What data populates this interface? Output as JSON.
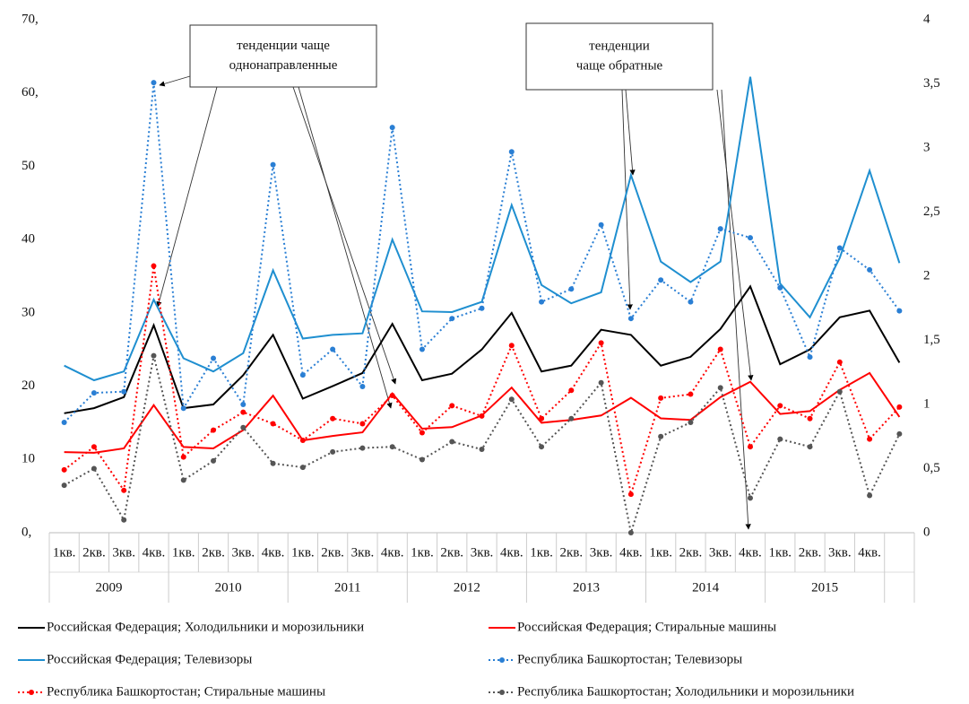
{
  "chart_data": {
    "type": "line",
    "categories": [
      "1кв.",
      "2кв.",
      "3кв.",
      "4кв.",
      "1кв.",
      "2кв.",
      "3кв.",
      "4кв.",
      "1кв.",
      "2кв.",
      "3кв.",
      "4кв.",
      "1кв.",
      "2кв.",
      "3кв.",
      "4кв.",
      "1кв.",
      "2кв.",
      "3кв.",
      "4кв.",
      "1кв.",
      "2кв.",
      "3кв.",
      "4кв.",
      "1кв.",
      "2кв.",
      "3кв.",
      "4кв.",
      null
    ],
    "groups": [
      "2009",
      "2010",
      "2011",
      "2012",
      "2013",
      "2014",
      "2015"
    ],
    "ylim": [
      0,
      70
    ],
    "yticks": [
      {
        "value": 0,
        "label": "0,"
      },
      10,
      20,
      30,
      40,
      50,
      {
        "value": 60,
        "label": "60,"
      },
      {
        "value": 70,
        "label": "70,"
      }
    ],
    "y2lim": [
      0,
      4
    ],
    "y2ticks": [
      0,
      {
        "value": 0.5,
        "label": "0,5"
      },
      1,
      {
        "value": 1.5,
        "label": "1,5"
      },
      2,
      {
        "value": 2.5,
        "label": "2,5"
      },
      3,
      {
        "value": 3.5,
        "label": "3,5"
      },
      4
    ],
    "series": [
      {
        "name": "Российская Федерация; Холодильники и морозильники",
        "color": "#000000",
        "style": "solid",
        "values": [
          16.3,
          17,
          18.5,
          28.3,
          17,
          17.5,
          21.5,
          27,
          18.3,
          20,
          21.8,
          28.5,
          20.8,
          21.7,
          25,
          30,
          22,
          22.8,
          27.7,
          27,
          22.8,
          24,
          27.8,
          33.6,
          23,
          25,
          29.4,
          30.3,
          23.2
        ]
      },
      {
        "name": "Российская Федерация; Стиральные машины",
        "color": "#ff0000",
        "style": "solid",
        "values": [
          11,
          10.9,
          11.5,
          17.4,
          11.7,
          11.5,
          14,
          18.7,
          12.6,
          13.2,
          13.7,
          19,
          14.2,
          14.4,
          16,
          19.8,
          15,
          15.4,
          16,
          18.4,
          15.6,
          15.4,
          18.5,
          20.6,
          16.2,
          16.6,
          19.5,
          21.8,
          15.8
        ]
      },
      {
        "name": "Российская Федерация; Телевизоры",
        "color": "#1f8fd0",
        "style": "solid",
        "values": [
          22.8,
          20.8,
          22,
          31.8,
          23.8,
          22,
          24.5,
          35.8,
          26.5,
          27,
          27.2,
          40,
          30.2,
          30.1,
          31.5,
          44.7,
          33.8,
          31.3,
          32.8,
          48.8,
          37,
          34.2,
          37,
          62.2,
          34,
          29.4,
          37.5,
          49.4,
          36.8
        ]
      },
      {
        "name": "Республика Башкортостан; Телевизоры",
        "color": "#2a7fd4",
        "style": "dotted",
        "axis": "y2",
        "values": [
          0.86,
          1.09,
          1.1,
          3.51,
          0.97,
          1.36,
          1.0,
          2.87,
          1.23,
          1.43,
          1.14,
          3.16,
          1.43,
          1.67,
          1.75,
          2.97,
          1.8,
          1.9,
          2.4,
          1.67,
          1.97,
          1.8,
          2.37,
          2.3,
          1.91,
          1.37,
          2.22,
          2.05,
          1.73
        ]
      },
      {
        "name": "Республика Башкортостан; Стиральные машины",
        "color": "#ff0000",
        "style": "dotted",
        "axis": "y2",
        "values": [
          0.49,
          0.67,
          0.33,
          2.08,
          0.59,
          0.8,
          0.94,
          0.85,
          0.72,
          0.89,
          0.85,
          1.07,
          0.78,
          0.99,
          0.91,
          1.46,
          0.89,
          1.11,
          1.48,
          0.3,
          1.05,
          1.08,
          1.43,
          0.67,
          0.99,
          0.89,
          1.33,
          0.73,
          0.98
        ]
      },
      {
        "name": "Республика Башкортостан; Холодильники и морозильники",
        "color": "#555555",
        "style": "dotted",
        "axis": "y2",
        "values": [
          0.37,
          0.5,
          0.1,
          1.38,
          0.41,
          0.56,
          0.82,
          0.54,
          0.51,
          0.63,
          0.66,
          0.67,
          0.57,
          0.71,
          0.65,
          1.04,
          0.67,
          0.89,
          1.17,
          0,
          0.75,
          0.86,
          1.13,
          0.27,
          0.73,
          0.67,
          1.1,
          0.29,
          0.77
        ]
      }
    ],
    "annotations": [
      {
        "lines": [
          "тенденции чаще",
          "однонаправленные"
        ]
      },
      {
        "lines": [
          "тенденции",
          "чаще обратные"
        ]
      }
    ]
  }
}
